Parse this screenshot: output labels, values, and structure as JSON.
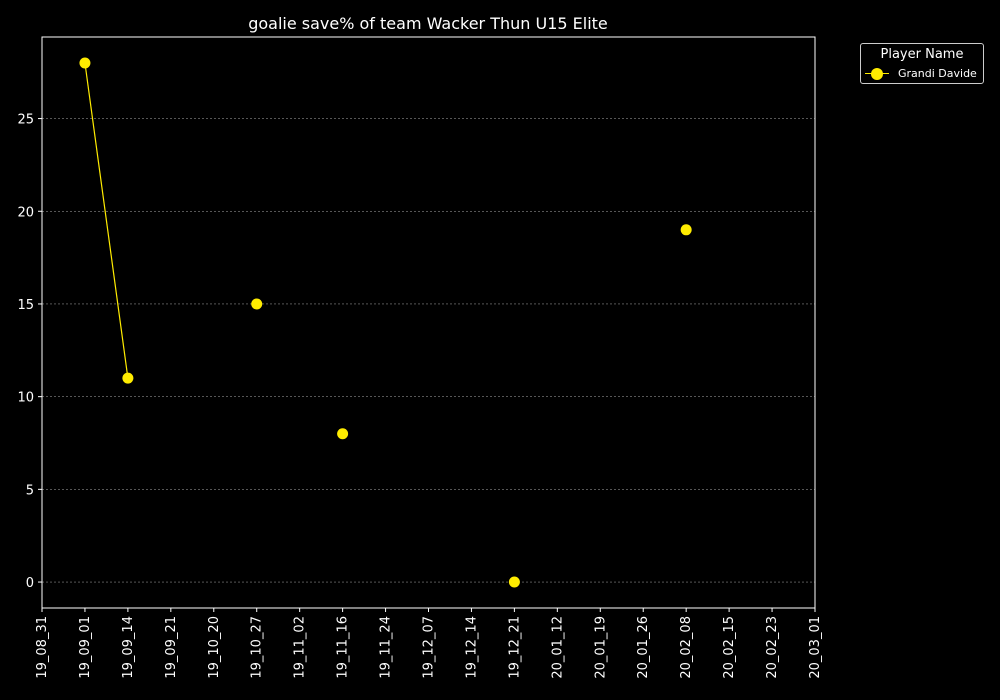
{
  "chart_data": {
    "type": "line",
    "title": "goalie save% of team Wacker Thun U15 Elite",
    "xlabel": "",
    "ylabel": "",
    "x_ticks": [
      "19_08_31",
      "19_09_01",
      "19_09_14",
      "19_09_21",
      "19_10_20",
      "19_10_27",
      "19_11_02",
      "19_11_16",
      "19_11_24",
      "19_12_07",
      "19_12_14",
      "19_12_21",
      "20_01_12",
      "20_01_19",
      "20_01_26",
      "20_02_08",
      "20_02_15",
      "20_02_23",
      "20_03_01"
    ],
    "y_ticks": [
      0,
      5,
      10,
      15,
      20,
      25
    ],
    "ylim": [
      -1.4,
      29.4
    ],
    "grid": "horizontal dashed",
    "legend": {
      "title": "Player Name",
      "placement": "upper-right outside"
    },
    "series": [
      {
        "name": "Grandi Davide",
        "color": "#ffec00",
        "points": [
          {
            "x": "19_09_01",
            "y": 28
          },
          {
            "x": "19_09_14",
            "y": 11
          },
          {
            "x": "19_10_27",
            "y": 15
          },
          {
            "x": "19_11_16",
            "y": 8
          },
          {
            "x": "19_12_21",
            "y": 0
          },
          {
            "x": "20_02_08",
            "y": 19
          }
        ],
        "connected_segments": [
          [
            0,
            1
          ]
        ]
      }
    ]
  }
}
